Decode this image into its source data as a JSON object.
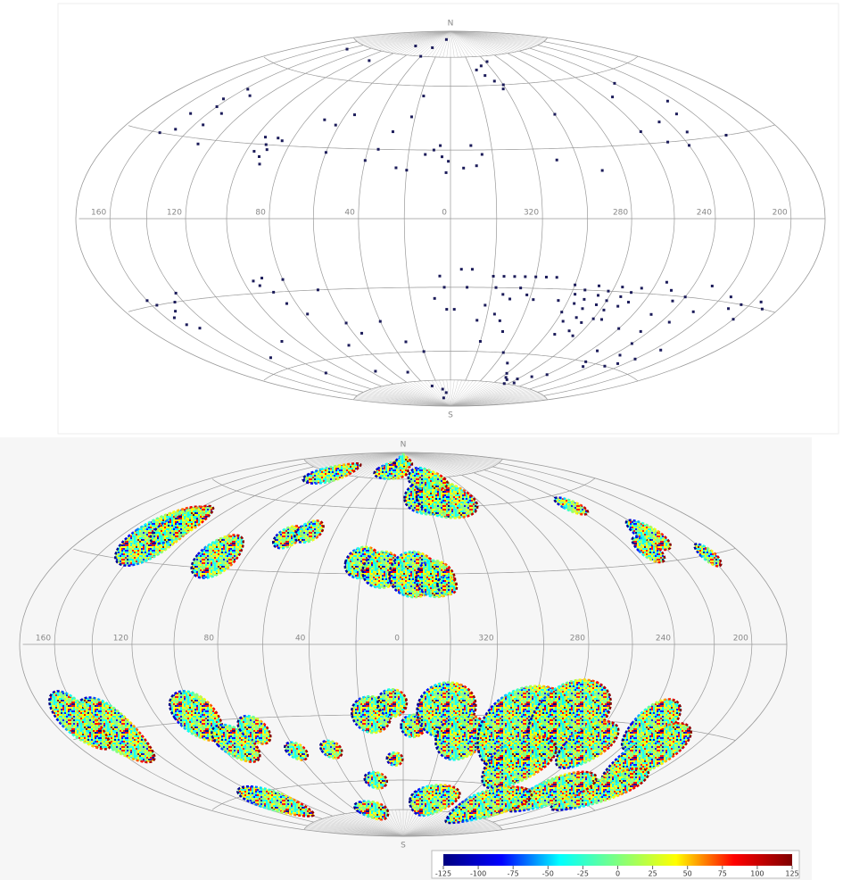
{
  "top_map": {
    "north": "N",
    "south": "S",
    "longitude_labels": [
      160,
      120,
      80,
      40,
      0,
      320,
      280,
      240,
      200
    ],
    "points": [
      [
        150,
        38
      ],
      [
        148,
        32
      ],
      [
        143,
        45
      ],
      [
        140,
        42
      ],
      [
        138,
        50
      ],
      [
        135,
        35
      ],
      [
        132,
        40
      ],
      [
        130,
        48
      ],
      [
        128,
        28
      ],
      [
        155,
        30
      ],
      [
        95,
        33
      ],
      [
        92,
        30
      ],
      [
        90,
        28
      ],
      [
        88,
        33
      ],
      [
        85,
        32
      ],
      [
        92,
        25
      ],
      [
        90,
        22
      ],
      [
        96,
        27
      ],
      [
        62,
        40
      ],
      [
        55,
        45
      ],
      [
        70,
        42
      ],
      [
        40,
        25
      ],
      [
        35,
        30
      ],
      [
        30,
        38
      ],
      [
        22,
        45
      ],
      [
        18,
        55
      ],
      [
        60,
        28
      ],
      [
        25,
        22
      ],
      [
        90,
        70
      ],
      [
        40,
        75
      ],
      [
        35,
        80
      ],
      [
        15,
        85
      ],
      [
        70,
        80
      ],
      [
        140,
        72
      ],
      [
        5,
        32
      ],
      [
        4,
        27
      ],
      [
        12,
        28
      ],
      [
        350,
        32
      ],
      [
        348,
        23
      ],
      [
        354,
        22
      ],
      [
        20,
        21
      ],
      [
        1,
        25
      ],
      [
        8,
        30
      ],
      [
        345,
        28
      ],
      [
        2,
        20
      ],
      [
        335,
        68
      ],
      [
        330,
        65
      ],
      [
        328,
        70
      ],
      [
        325,
        62
      ],
      [
        320,
        60
      ],
      [
        318,
        72
      ],
      [
        322,
        58
      ],
      [
        300,
        45
      ],
      [
        310,
        25
      ],
      [
        290,
        20
      ],
      [
        260,
        35
      ],
      [
        250,
        30
      ],
      [
        245,
        38
      ],
      [
        240,
        28
      ],
      [
        235,
        33
      ],
      [
        230,
        40
      ],
      [
        225,
        45
      ],
      [
        215,
        30
      ],
      [
        240,
        55
      ],
      [
        255,
        50
      ],
      [
        160,
        -28
      ],
      [
        157,
        -30
      ],
      [
        155,
        -35
      ],
      [
        150,
        -33
      ],
      [
        145,
        -30
      ],
      [
        140,
        -27
      ],
      [
        153,
        -38
      ],
      [
        148,
        -40
      ],
      [
        95,
        -25
      ],
      [
        93,
        -27
      ],
      [
        90,
        -24
      ],
      [
        88,
        -30
      ],
      [
        85,
        -35
      ],
      [
        80,
        -25
      ],
      [
        78,
        -40
      ],
      [
        65,
        -30
      ],
      [
        60,
        -45
      ],
      [
        55,
        -50
      ],
      [
        70,
        -55
      ],
      [
        40,
        -45
      ],
      [
        30,
        -55
      ],
      [
        20,
        -60
      ],
      [
        110,
        -50
      ],
      [
        135,
        -55
      ],
      [
        120,
        -65
      ],
      [
        45,
        -70
      ],
      [
        30,
        -78
      ],
      [
        15,
        -80
      ],
      [
        10,
        -82
      ],
      [
        25,
        -85
      ],
      [
        75,
        -68
      ],
      [
        5,
        -25
      ],
      [
        3,
        -30
      ],
      [
        8,
        -35
      ],
      [
        355,
        -22
      ],
      [
        350,
        -22
      ],
      [
        352,
        -30
      ],
      [
        358,
        -40
      ],
      [
        2,
        -40
      ],
      [
        340,
        -25
      ],
      [
        335,
        -25
      ],
      [
        330,
        -25
      ],
      [
        325,
        -25
      ],
      [
        320,
        -25
      ],
      [
        315,
        -25
      ],
      [
        310,
        -25
      ],
      [
        338,
        -30
      ],
      [
        334,
        -33
      ],
      [
        330,
        -35
      ],
      [
        326,
        -30
      ],
      [
        322,
        -33
      ],
      [
        318,
        -35
      ],
      [
        342,
        -38
      ],
      [
        336,
        -42
      ],
      [
        332,
        -45
      ],
      [
        345,
        -45
      ],
      [
        328,
        -50
      ],
      [
        340,
        -55
      ],
      [
        320,
        -60
      ],
      [
        300,
        -28
      ],
      [
        298,
        -32
      ],
      [
        296,
        -36
      ],
      [
        294,
        -30
      ],
      [
        292,
        -34
      ],
      [
        290,
        -38
      ],
      [
        288,
        -28
      ],
      [
        286,
        -32
      ],
      [
        284,
        -36
      ],
      [
        282,
        -30
      ],
      [
        280,
        -34
      ],
      [
        278,
        -38
      ],
      [
        276,
        -28
      ],
      [
        274,
        -32
      ],
      [
        272,
        -36
      ],
      [
        270,
        -30
      ],
      [
        268,
        -34
      ],
      [
        266,
        -28
      ],
      [
        290,
        -42
      ],
      [
        285,
        -44
      ],
      [
        280,
        -42
      ],
      [
        296,
        -44
      ],
      [
        275,
        -42
      ],
      [
        300,
        -40
      ],
      [
        305,
        -35
      ],
      [
        288,
        -48
      ],
      [
        295,
        -50
      ],
      [
        283,
        -50
      ],
      [
        255,
        -25
      ],
      [
        250,
        -28
      ],
      [
        245,
        -32
      ],
      [
        240,
        -30
      ],
      [
        250,
        -38
      ],
      [
        245,
        -45
      ],
      [
        240,
        -50
      ],
      [
        235,
        -55
      ],
      [
        230,
        -60
      ],
      [
        225,
        -58
      ],
      [
        220,
        -55
      ],
      [
        215,
        -50
      ],
      [
        235,
        -40
      ],
      [
        228,
        -35
      ],
      [
        215,
        -28
      ],
      [
        210,
        -32
      ],
      [
        205,
        -30
      ],
      [
        200,
        -35
      ],
      [
        195,
        -28
      ],
      [
        190,
        -30
      ],
      [
        230,
        -25
      ],
      [
        260,
        -45
      ],
      [
        255,
        -55
      ],
      [
        250,
        -60
      ],
      [
        245,
        -62
      ],
      [
        300,
        -70
      ],
      [
        295,
        -72
      ],
      [
        290,
        -73
      ],
      [
        285,
        -75
      ],
      [
        280,
        -72
      ],
      [
        275,
        -74
      ],
      [
        270,
        -70
      ],
      [
        260,
        -68
      ],
      [
        310,
        -65
      ]
    ]
  },
  "bottom_map": {
    "north": "N",
    "south": "S",
    "longitude_labels": [
      160,
      120,
      80,
      40,
      0,
      320,
      280,
      240,
      200
    ],
    "patches": [
      [
        140,
        40,
        12
      ],
      [
        135,
        45,
        8
      ],
      [
        95,
        35,
        9
      ],
      [
        65,
        45,
        5
      ],
      [
        55,
        48,
        5
      ],
      [
        20,
        35,
        7
      ],
      [
        10,
        32,
        8
      ],
      [
        355,
        30,
        10
      ],
      [
        345,
        28,
        8
      ],
      [
        340,
        65,
        8
      ],
      [
        325,
        65,
        10
      ],
      [
        330,
        75,
        6
      ],
      [
        340,
        25,
        4
      ],
      [
        240,
        55,
        4
      ],
      [
        220,
        40,
        6
      ],
      [
        230,
        35,
        5
      ],
      [
        200,
        30,
        4
      ],
      [
        100,
        75,
        6
      ],
      [
        20,
        80,
        5
      ],
      [
        0,
        85,
        4
      ],
      [
        150,
        -30,
        12
      ],
      [
        165,
        -25,
        10
      ],
      [
        100,
        -28,
        10
      ],
      [
        90,
        -40,
        8
      ],
      [
        75,
        -35,
        6
      ],
      [
        60,
        -45,
        4
      ],
      [
        40,
        -45,
        4
      ],
      [
        15,
        -30,
        8
      ],
      [
        5,
        -25,
        6
      ],
      [
        355,
        -35,
        5
      ],
      [
        340,
        -28,
        12
      ],
      [
        330,
        -40,
        10
      ],
      [
        300,
        -35,
        18
      ],
      [
        280,
        -30,
        16
      ],
      [
        290,
        -50,
        12
      ],
      [
        260,
        -40,
        10
      ],
      [
        235,
        -30,
        10
      ],
      [
        220,
        -40,
        12
      ],
      [
        210,
        -55,
        10
      ],
      [
        240,
        -60,
        10
      ],
      [
        270,
        -70,
        10
      ],
      [
        330,
        -70,
        8
      ],
      [
        120,
        -65,
        8
      ],
      [
        40,
        -75,
        5
      ],
      [
        20,
        -60,
        4
      ],
      [
        5,
        -50,
        3
      ]
    ]
  },
  "colorbar": {
    "ticks": [
      -125,
      -100,
      -75,
      -50,
      -25,
      0,
      25,
      50,
      75,
      100,
      125
    ],
    "colors": [
      "#00007f",
      "#0000ff",
      "#00ffff",
      "#7fff7f",
      "#ffff00",
      "#ff0000",
      "#7f0000"
    ]
  }
}
